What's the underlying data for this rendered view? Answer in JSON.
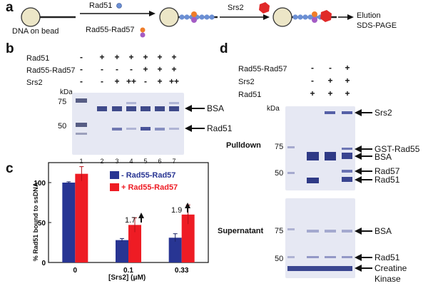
{
  "panels": {
    "a": {
      "letter": "a",
      "dna_label": "DNA on bead",
      "rad51_label": "Rad51",
      "rad55_label": "Rad55-Rad57",
      "srs2_label": "Srs2",
      "elution_label": "Elution",
      "sds_label": "SDS-PAGE"
    },
    "b": {
      "letter": "b",
      "row_labels": [
        "Rad51",
        "Rad55-Rad57",
        "Srs2"
      ],
      "rows": [
        [
          "-",
          "+",
          "+",
          "+",
          "+",
          "+",
          "+"
        ],
        [
          "-",
          "-",
          "-",
          "-",
          "+",
          "+",
          "+"
        ],
        [
          "-",
          "-",
          "+",
          "++",
          "-",
          "+",
          "++"
        ]
      ],
      "kda": "kDa",
      "markers": [
        "75",
        "50"
      ],
      "band_labels": [
        "BSA",
        "Rad51"
      ],
      "lanes": [
        "1",
        "2",
        "3",
        "4",
        "5",
        "6",
        "7"
      ]
    },
    "c": {
      "letter": "c",
      "legend": [
        "- Rad55-Rad57",
        "+ Rad55-Rad57"
      ],
      "fold_labels": [
        "1.7",
        "1.9"
      ]
    },
    "d": {
      "letter": "d",
      "row_labels": [
        "Rad55-Rad57",
        "Srs2",
        "Rad51"
      ],
      "rows": [
        [
          "-",
          "-",
          "+"
        ],
        [
          "-",
          "+",
          "+"
        ],
        [
          "+",
          "+",
          "+"
        ]
      ],
      "kda": "kDa",
      "pulldown_label": "Pulldown",
      "supernatant_label": "Supernatant",
      "pulldown_markers": [
        "75",
        "50"
      ],
      "supernatant_markers": [
        "75",
        "50"
      ],
      "pulldown_bands": [
        "Srs2",
        "GST-Rad55",
        "BSA",
        "Rad57",
        "Rad51"
      ],
      "supernatant_bands": [
        "BSA",
        "Rad51",
        "Creatine",
        "Kinase"
      ]
    }
  },
  "chart_data": {
    "type": "bar",
    "categories": [
      "0",
      "0.1",
      "0.33"
    ],
    "xlabel": "[Srs2] (μM)",
    "ylabel": "% Rad51 bound to ssDNA",
    "ylim": [
      0,
      125
    ],
    "yticks": [
      "0",
      "50",
      "100"
    ],
    "series": [
      {
        "name": "- Rad55-Rad57",
        "values": [
          100,
          28,
          31
        ],
        "errors": [
          1,
          2,
          5
        ],
        "color": "#283593"
      },
      {
        "name": "+ Rad55-Rad57",
        "values": [
          111,
          47,
          60
        ],
        "errors": [
          9,
          9,
          12
        ],
        "color": "#ee1c24"
      }
    ],
    "legend_position": "top-right"
  }
}
